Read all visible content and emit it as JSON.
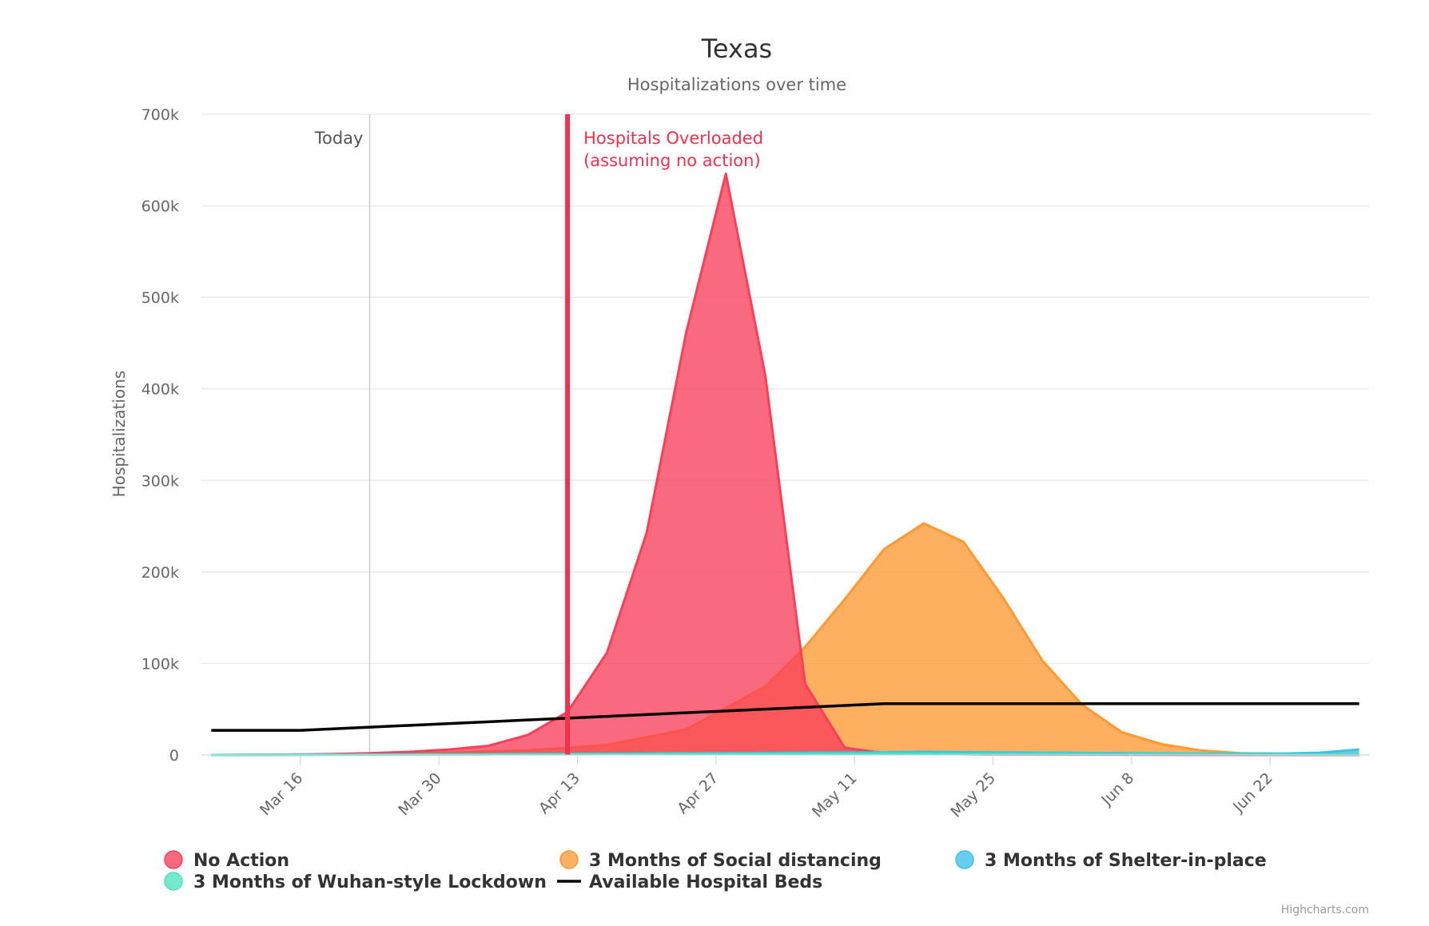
{
  "chart_data": {
    "type": "area",
    "title": "Texas",
    "subtitle": "Hospitalizations over time",
    "ylabel": "Hospitalizations",
    "xlabel": "",
    "ylim": [
      0,
      700000
    ],
    "xlim": [
      "2020-03-06",
      "2020-07-02"
    ],
    "grid": true,
    "legend_position": "bottom",
    "yticks": [
      {
        "value": 0,
        "label": "0"
      },
      {
        "value": 100000,
        "label": "100k"
      },
      {
        "value": 200000,
        "label": "200k"
      },
      {
        "value": 300000,
        "label": "300k"
      },
      {
        "value": 400000,
        "label": "400k"
      },
      {
        "value": 500000,
        "label": "500k"
      },
      {
        "value": 600000,
        "label": "600k"
      },
      {
        "value": 700000,
        "label": "700k"
      }
    ],
    "xticks": [
      {
        "date": "2020-03-16",
        "label": "Mar 16"
      },
      {
        "date": "2020-03-30",
        "label": "Mar 30"
      },
      {
        "date": "2020-04-13",
        "label": "Apr 13"
      },
      {
        "date": "2020-04-27",
        "label": "Apr 27"
      },
      {
        "date": "2020-05-11",
        "label": "May 11"
      },
      {
        "date": "2020-05-25",
        "label": "May 25"
      },
      {
        "date": "2020-06-08",
        "label": "Jun 8"
      },
      {
        "date": "2020-06-22",
        "label": "Jun 22"
      }
    ],
    "plot_lines": [
      {
        "date": "2020-03-23",
        "label": "Today",
        "color": "#cccccc"
      },
      {
        "date": "2020-04-12",
        "label": "Hospitals Overloaded",
        "label2": "(assuming no action)",
        "color": "#f0304f"
      }
    ],
    "series": [
      {
        "name": "No Action",
        "type": "area",
        "color": "#f9405a",
        "points": [
          [
            "2020-03-07",
            0
          ],
          [
            "2020-03-11",
            200
          ],
          [
            "2020-03-15",
            500
          ],
          [
            "2020-03-19",
            1000
          ],
          [
            "2020-03-23",
            2000
          ],
          [
            "2020-03-27",
            3500
          ],
          [
            "2020-03-31",
            6000
          ],
          [
            "2020-04-04",
            10000
          ],
          [
            "2020-04-08",
            22000
          ],
          [
            "2020-04-12",
            47000
          ],
          [
            "2020-04-16",
            112000
          ],
          [
            "2020-04-20",
            243000
          ],
          [
            "2020-04-24",
            462000
          ],
          [
            "2020-04-28",
            635000
          ],
          [
            "2020-05-02",
            414000
          ],
          [
            "2020-05-06",
            78000
          ],
          [
            "2020-05-10",
            8000
          ],
          [
            "2020-05-14",
            2000
          ],
          [
            "2020-05-24",
            500
          ],
          [
            "2020-06-20",
            100
          ],
          [
            "2020-07-01",
            100
          ]
        ]
      },
      {
        "name": "3 Months of Social distancing",
        "type": "area",
        "color": "#ff9933",
        "points": [
          [
            "2020-03-07",
            0
          ],
          [
            "2020-03-15",
            300
          ],
          [
            "2020-03-23",
            1000
          ],
          [
            "2020-03-31",
            2500
          ],
          [
            "2020-04-08",
            5000
          ],
          [
            "2020-04-16",
            11000
          ],
          [
            "2020-04-24",
            28000
          ],
          [
            "2020-05-02",
            75000
          ],
          [
            "2020-05-06",
            118000
          ],
          [
            "2020-05-10",
            170000
          ],
          [
            "2020-05-14",
            225000
          ],
          [
            "2020-05-18",
            253000
          ],
          [
            "2020-05-22",
            233000
          ],
          [
            "2020-05-26",
            172000
          ],
          [
            "2020-05-30",
            103000
          ],
          [
            "2020-06-03",
            55000
          ],
          [
            "2020-06-07",
            25000
          ],
          [
            "2020-06-11",
            12000
          ],
          [
            "2020-06-15",
            5000
          ],
          [
            "2020-06-19",
            2000
          ],
          [
            "2020-06-27",
            1000
          ],
          [
            "2020-07-01",
            500
          ]
        ]
      },
      {
        "name": "3 Months of Shelter-in-place",
        "type": "area",
        "color": "#3ec0e9",
        "points": [
          [
            "2020-03-07",
            0
          ],
          [
            "2020-03-23",
            500
          ],
          [
            "2020-04-12",
            1200
          ],
          [
            "2020-05-14",
            3000
          ],
          [
            "2020-05-18",
            3500
          ],
          [
            "2020-05-30",
            2500
          ],
          [
            "2020-06-15",
            1500
          ],
          [
            "2020-06-23",
            1500
          ],
          [
            "2020-06-27",
            2500
          ],
          [
            "2020-07-01",
            6000
          ]
        ]
      },
      {
        "name": "3 Months of Wuhan-style Lockdown",
        "type": "area",
        "color": "#4ee1c0",
        "points": [
          [
            "2020-03-07",
            0
          ],
          [
            "2020-03-23",
            400
          ],
          [
            "2020-04-12",
            800
          ],
          [
            "2020-05-14",
            1500
          ],
          [
            "2020-06-15",
            800
          ],
          [
            "2020-07-01",
            500
          ]
        ]
      },
      {
        "name": "Available Hospital Beds",
        "type": "line",
        "color": "#000000",
        "points": [
          [
            "2020-03-07",
            27000
          ],
          [
            "2020-03-16",
            27000
          ],
          [
            "2020-05-14",
            56000
          ],
          [
            "2020-07-01",
            56000
          ]
        ]
      }
    ],
    "legend": [
      {
        "name": "No Action",
        "symbol": "circle",
        "color": "#f9405a"
      },
      {
        "name": "3 Months of Social distancing",
        "symbol": "circle",
        "color": "#ff9933"
      },
      {
        "name": "3 Months of Shelter-in-place",
        "symbol": "circle",
        "color": "#3ec0e9"
      },
      {
        "name": "3 Months of Wuhan-style Lockdown",
        "symbol": "circle",
        "color": "#4ee1c0"
      },
      {
        "name": "Available Hospital Beds",
        "symbol": "line",
        "color": "#000000"
      }
    ],
    "credits": "Highcharts.com"
  }
}
